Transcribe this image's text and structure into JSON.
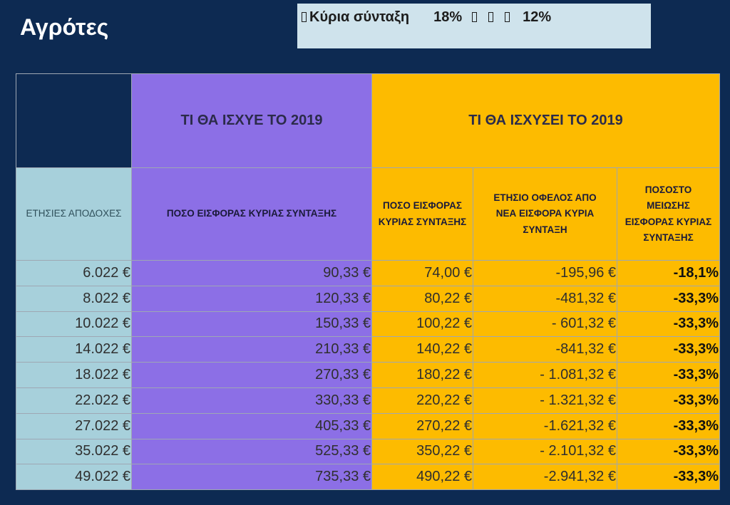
{
  "title": "Αγρότες",
  "info_box": {
    "label": "Κύρια σύνταξη",
    "rate_old": "18%",
    "rate_new": "12%",
    "glyph_icon": "missing-glyph-box"
  },
  "table": {
    "group_headers": {
      "old": "ΤΙ ΘΑ ΙΣΧΥΕ ΤΟ 2019",
      "new": "ΤΙ ΘΑ ΙΣΧΥΣΕΙ ΤΟ 2019"
    },
    "column_headers": {
      "annual_earnings": "ΕΤΗΣΙΕΣ ΑΠΟΔΟΧΕΣ",
      "old_contribution": "ΠΟΣΟ ΕΙΣΦΟΡΑΣ ΚΥΡΙΑΣ ΣΥΝΤΑΞΗΣ",
      "new_contribution_l1": "ΠΟΣΟ ΕΙΣΦΟΡΑΣ",
      "new_contribution_l2": "ΚΥΡΙΑΣ ΣΥΝΤΑΞΗΣ",
      "annual_benefit_l1": "ΕΤΗΣΙΟ ΟΦΕΛΟΣ ΑΠΟ",
      "annual_benefit_l2": "ΝΕΑ ΕΙΣΦΟΡΑ ΚΥΡΙΑ",
      "annual_benefit_l3": "ΣΥΝΤΑΞΗ",
      "reduction_pct_l1": "ΠΟΣΟΣΤΟ",
      "reduction_pct_l2": "ΜΕΙΩΣΗΣ",
      "reduction_pct_l3": "ΕΙΣΦΟΡΑΣ ΚΥΡΙΑΣ",
      "reduction_pct_l4": "ΣΥΝΤΑΞΗΣ"
    },
    "rows": [
      {
        "earnings": "6.022 €",
        "old": "90,33 €",
        "new": "74,00 €",
        "benefit": "-195,96 €",
        "pct": "-18,1%"
      },
      {
        "earnings": "8.022 €",
        "old": "120,33 €",
        "new": "80,22 €",
        "benefit": "-481,32 €",
        "pct": "-33,3%"
      },
      {
        "earnings": "10.022 €",
        "old": "150,33 €",
        "new": "100,22 €",
        "benefit": "- 601,32 €",
        "pct": "-33,3%"
      },
      {
        "earnings": "14.022 €",
        "old": "210,33 €",
        "new": "140,22 €",
        "benefit": "-841,32 €",
        "pct": "-33,3%"
      },
      {
        "earnings": "18.022 €",
        "old": "270,33 €",
        "new": "180,22 €",
        "benefit": "- 1.081,32 €",
        "pct": "-33,3%"
      },
      {
        "earnings": "22.022 €",
        "old": "330,33 €",
        "new": "220,22 €",
        "benefit": "- 1.321,32 €",
        "pct": "-33,3%"
      },
      {
        "earnings": "27.022 €",
        "old": "405,33 €",
        "new": "270,22 €",
        "benefit": "-1.621,32 €",
        "pct": "-33,3%"
      },
      {
        "earnings": "35.022 €",
        "old": "525,33 €",
        "new": "350,22 €",
        "benefit": "-  2.101,32 €",
        "pct": "-33,3%"
      },
      {
        "earnings": "49.022 €",
        "old": "735,33 €",
        "new": "490,22 €",
        "benefit": "-2.941,32 €",
        "pct": "-33,3%"
      }
    ]
  },
  "colors": {
    "background": "#0d2a52",
    "info_box": "#cfe3ec",
    "purple": "#8c6fe6",
    "orange": "#fdbb00",
    "teal": "#a7d0db"
  }
}
